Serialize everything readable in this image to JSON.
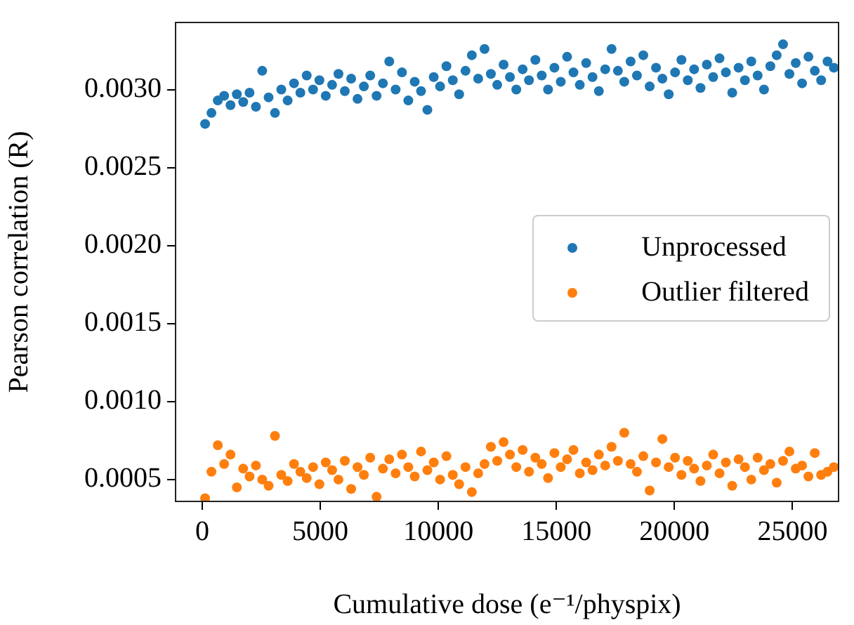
{
  "chart_data": {
    "type": "scatter",
    "xlabel": "Cumulative dose (e⁻¹/physpix)",
    "ylabel": "Pearson correlation (R)",
    "x": [
      120,
      389,
      658,
      927,
      1196,
      1465,
      1734,
      2003,
      2272,
      2541,
      2810,
      3079,
      3348,
      3617,
      3886,
      4155,
      4424,
      4693,
      4962,
      5231,
      5500,
      5769,
      6038,
      6307,
      6576,
      6845,
      7114,
      7383,
      7652,
      7921,
      8190,
      8459,
      8728,
      8997,
      9266,
      9535,
      9804,
      10073,
      10342,
      10611,
      10880,
      11149,
      11418,
      11687,
      11956,
      12225,
      12494,
      12763,
      13032,
      13301,
      13570,
      13839,
      14108,
      14377,
      14646,
      14915,
      15184,
      15453,
      15722,
      15991,
      16260,
      16529,
      16798,
      17067,
      17336,
      17605,
      17874,
      18143,
      18412,
      18681,
      18950,
      19219,
      19488,
      19757,
      20026,
      20295,
      20564,
      20833,
      21102,
      21371,
      21640,
      21909,
      22178,
      22447,
      22716,
      22985,
      23254,
      23523,
      23792,
      24061,
      24330,
      24599,
      24868,
      25137,
      25406,
      25675,
      25944,
      26213,
      26482,
      26751
    ],
    "series": [
      {
        "name": "Unprocessed",
        "color": "#1f77b4",
        "values": [
          0.00278,
          0.00285,
          0.00293,
          0.00296,
          0.0029,
          0.00297,
          0.00292,
          0.00298,
          0.00289,
          0.00312,
          0.00295,
          0.00285,
          0.003,
          0.00293,
          0.00304,
          0.00298,
          0.00309,
          0.003,
          0.00306,
          0.00296,
          0.00303,
          0.0031,
          0.00299,
          0.00307,
          0.00294,
          0.00302,
          0.00309,
          0.00296,
          0.00304,
          0.00318,
          0.003,
          0.00311,
          0.00293,
          0.00305,
          0.00299,
          0.00287,
          0.00308,
          0.00302,
          0.00315,
          0.00306,
          0.00297,
          0.00312,
          0.00322,
          0.00307,
          0.00326,
          0.0031,
          0.00303,
          0.00316,
          0.00308,
          0.003,
          0.00313,
          0.00306,
          0.00319,
          0.00309,
          0.003,
          0.00314,
          0.00305,
          0.00321,
          0.00311,
          0.00303,
          0.00317,
          0.00308,
          0.00299,
          0.00313,
          0.00326,
          0.00312,
          0.00305,
          0.00318,
          0.00309,
          0.00322,
          0.00302,
          0.00314,
          0.00307,
          0.00297,
          0.00311,
          0.00319,
          0.00306,
          0.00313,
          0.00301,
          0.00316,
          0.00308,
          0.0032,
          0.00311,
          0.00298,
          0.00314,
          0.00306,
          0.00318,
          0.00309,
          0.003,
          0.00315,
          0.00322,
          0.00329,
          0.0031,
          0.00317,
          0.00304,
          0.00321,
          0.00312,
          0.00306,
          0.00318,
          0.00314
        ]
      },
      {
        "name": "Outlier filtered",
        "color": "#ff7f0e",
        "values": [
          0.00038,
          0.00055,
          0.00072,
          0.0006,
          0.00066,
          0.00045,
          0.00057,
          0.00052,
          0.00059,
          0.0005,
          0.00046,
          0.00078,
          0.00053,
          0.00049,
          0.0006,
          0.00055,
          0.00051,
          0.00058,
          0.00047,
          0.00061,
          0.00056,
          0.0005,
          0.00062,
          0.00044,
          0.00058,
          0.00053,
          0.00064,
          0.00039,
          0.00057,
          0.00063,
          0.00054,
          0.00066,
          0.00058,
          0.00052,
          0.00068,
          0.00056,
          0.00061,
          0.0005,
          0.00065,
          0.00053,
          0.00047,
          0.00058,
          0.00042,
          0.00054,
          0.0006,
          0.00071,
          0.00062,
          0.00074,
          0.00066,
          0.00058,
          0.00069,
          0.00055,
          0.00064,
          0.0006,
          0.00051,
          0.00067,
          0.00058,
          0.00063,
          0.00069,
          0.00054,
          0.00061,
          0.00056,
          0.00066,
          0.00059,
          0.00071,
          0.00062,
          0.0008,
          0.0006,
          0.00055,
          0.00065,
          0.00043,
          0.00061,
          0.00076,
          0.00058,
          0.00064,
          0.00053,
          0.00062,
          0.00057,
          0.00049,
          0.00059,
          0.00066,
          0.00054,
          0.00061,
          0.00046,
          0.00063,
          0.00058,
          0.0005,
          0.00064,
          0.00056,
          0.0006,
          0.00048,
          0.00062,
          0.00068,
          0.00057,
          0.00059,
          0.00052,
          0.00067,
          0.00053,
          0.00055,
          0.00058
        ]
      }
    ],
    "xlim": [
      -1130,
      26950
    ],
    "xticks": [
      0,
      5000,
      10000,
      15000,
      20000,
      25000
    ],
    "ylim": [
      0.00036,
      0.00343
    ],
    "yticks": [
      {
        "value": 0.0005,
        "label": "0.0005"
      },
      {
        "value": 0.001,
        "label": "0.0010"
      },
      {
        "value": 0.0015,
        "label": "0.0015"
      },
      {
        "value": 0.002,
        "label": "0.0020"
      },
      {
        "value": 0.0025,
        "label": "0.0025"
      },
      {
        "value": 0.003,
        "label": "0.0030"
      }
    ],
    "legend": "right",
    "marker": "circle",
    "grid": false
  }
}
